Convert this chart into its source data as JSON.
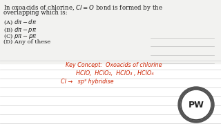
{
  "bg_color": "#ffffff",
  "bg_top": "#f7f7f7",
  "title_text_line1": "In oxoacids of chlorine, $Cl = O$ bond is formed by the",
  "title_text_line2": "overlapping which is:",
  "options": [
    "(A) $d\\pi - d\\pi$",
    "(B) $d\\pi - p\\pi$",
    "(C) $p\\pi - p\\pi$",
    "(D) Any of these"
  ],
  "hw_line1": "Key Concept:  Oxoacids of chlorine",
  "hw_line2": "HClO,  HClO₂,  HClO₃ , HClO₄",
  "hw_line3": "Cl →   sp³ hybridise",
  "line_color": "#d0d0d0",
  "line_color_right": "#c0c0c0",
  "handwritten_color": "#cc2200",
  "text_color": "#1a1a1a",
  "logo_text": "PW",
  "logo_outer_color": "#444444",
  "logo_inner_color": "#ffffff",
  "logo_ring_color": "#444444"
}
